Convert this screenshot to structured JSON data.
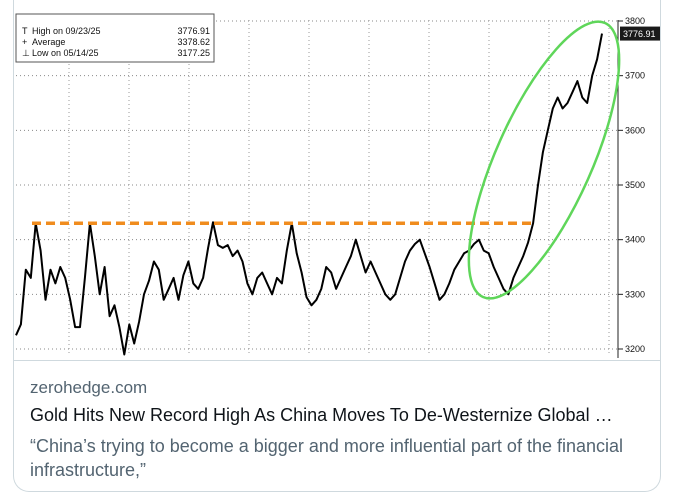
{
  "card": {
    "domain": "zerohedge.com",
    "title": "Gold Hits New Record High As China Moves To De-Westernize Global …",
    "description": "“China’s trying to become a bigger and more influential part of the financial infrastructure,”"
  },
  "chart_data": {
    "type": "line",
    "ylim": [
      3180,
      3810
    ],
    "yticks": [
      "3800",
      "3700",
      "3600",
      "3500",
      "3400",
      "3300",
      "3200"
    ],
    "last_value_label": "3776.91",
    "legend": [
      {
        "label": "High on 09/23/25",
        "value": "3776.91"
      },
      {
        "label": "Average",
        "value": "3378.62"
      },
      {
        "label": "Low on 05/14/25",
        "value": "3177.25"
      }
    ],
    "resistance_level": 3430,
    "annotations": {
      "resistance_line_color": "#f08c1e",
      "breakout_ellipse_color": "#5fd65a",
      "series_color": "#000000"
    },
    "series": [
      {
        "values": [
          3225,
          3245,
          3345,
          3330,
          3430,
          3380,
          3290,
          3345,
          3320,
          3350,
          3330,
          3290,
          3240,
          3240,
          3330,
          3430,
          3370,
          3300,
          3350,
          3260,
          3280,
          3240,
          3190,
          3245,
          3210,
          3250,
          3300,
          3325,
          3360,
          3345,
          3290,
          3310,
          3330,
          3290,
          3335,
          3360,
          3320,
          3310,
          3330,
          3385,
          3432,
          3390,
          3385,
          3390,
          3370,
          3380,
          3360,
          3320,
          3300,
          3330,
          3340,
          3320,
          3300,
          3330,
          3320,
          3380,
          3430,
          3375,
          3340,
          3295,
          3280,
          3290,
          3310,
          3350,
          3340,
          3310,
          3330,
          3350,
          3370,
          3400,
          3370,
          3340,
          3360,
          3340,
          3320,
          3300,
          3290,
          3300,
          3330,
          3360,
          3380,
          3392,
          3400,
          3375,
          3350,
          3320,
          3290,
          3300,
          3320,
          3345,
          3360,
          3375,
          3380,
          3392,
          3400,
          3380,
          3375,
          3350,
          3330,
          3310,
          3300,
          3330,
          3350,
          3370,
          3395,
          3430,
          3500,
          3560,
          3600,
          3640,
          3660,
          3640,
          3650,
          3670,
          3690,
          3660,
          3650,
          3700,
          3730,
          3777
        ]
      }
    ]
  }
}
